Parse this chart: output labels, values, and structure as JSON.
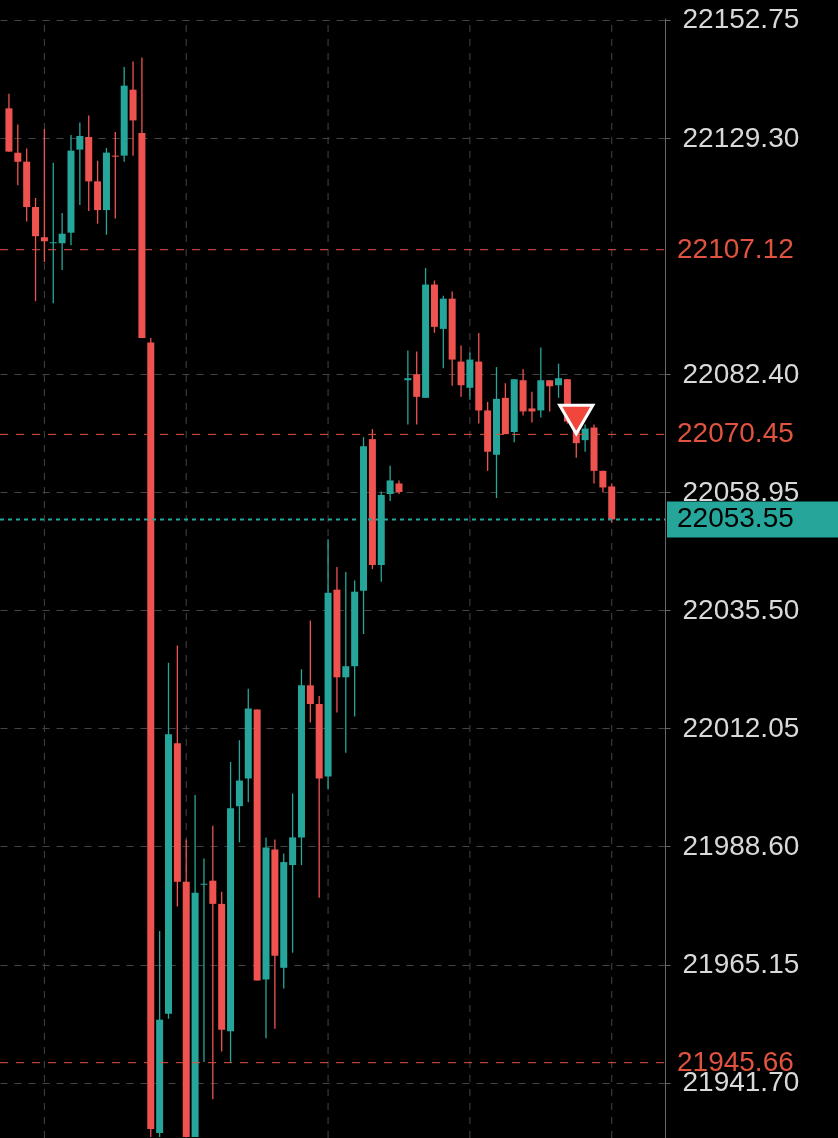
{
  "chart_data": {
    "type": "candlestick",
    "categories": [
      null,
      null,
      null,
      null,
      null,
      null,
      null,
      null,
      null,
      null,
      null,
      null,
      null,
      null,
      null,
      null,
      null,
      null,
      null,
      null,
      null,
      null,
      null,
      null,
      null,
      null,
      null,
      null,
      null,
      null,
      null,
      null,
      null,
      null,
      null,
      null,
      null,
      null,
      null,
      null,
      null,
      null,
      null,
      null,
      null,
      null,
      null,
      null,
      null,
      null,
      null,
      null,
      null,
      null,
      null,
      null,
      null,
      null,
      null,
      null,
      null,
      null,
      null,
      null,
      null,
      null,
      null,
      null,
      null
    ],
    "ohlc": [
      [
        22135.2,
        22138.1,
        22126.6,
        22126.6
      ],
      [
        22126.4,
        22132.0,
        22119.9,
        22124.6
      ],
      [
        22124.6,
        22127.2,
        22112.7,
        22115.6
      ],
      [
        22115.6,
        22117.4,
        22096.9,
        22109.8
      ],
      [
        22109.6,
        22131.1,
        22104.7,
        22108.8
      ],
      [
        22108.4,
        22124.4,
        22096.5,
        22108.6
      ],
      [
        22108.4,
        22114.4,
        22103.1,
        22110.3
      ],
      [
        22110.5,
        22129.9,
        22108.0,
        22126.8
      ],
      [
        22127.0,
        22132.4,
        22116.0,
        22129.7
      ],
      [
        22129.5,
        22133.8,
        22114.8,
        22120.7
      ],
      [
        22120.7,
        22124.8,
        22112.3,
        22115.0
      ],
      [
        22115.0,
        22127.3,
        22110.1,
        22126.4
      ],
      [
        22125.8,
        22130.5,
        22113.3,
        22125.6
      ],
      [
        22125.8,
        22143.4,
        22124.6,
        22139.7
      ],
      [
        22138.9,
        22144.5,
        22125.8,
        22132.8
      ],
      [
        22130.3,
        22145.3,
        22089.6,
        22089.6
      ],
      [
        22088.7,
        22089.6,
        21930.9,
        21932.5
      ],
      [
        21931.7,
        21971.8,
        21930.9,
        21954.2
      ],
      [
        21955.4,
        22025.1,
        21954.4,
        22010.9
      ],
      [
        22009.1,
        22028.5,
        21976.7,
        21981.6
      ],
      [
        21981.6,
        21990.0,
        21930.9,
        21930.9
      ],
      [
        21930.9,
        21998.8,
        21930.9,
        21979.4
      ],
      [
        21981.0,
        21986.2,
        21945.8,
        21981.2
      ],
      [
        21981.8,
        21992.7,
        21938.4,
        21977.2
      ],
      [
        21977.2,
        21979.6,
        21947.9,
        21952.2
      ],
      [
        21951.9,
        22005.4,
        21945.6,
        21996.2
      ],
      [
        21996.6,
        22009.7,
        21989.4,
        22001.7
      ],
      [
        22002.1,
        22019.9,
        21997.4,
        22016.0
      ],
      [
        22015.8,
        22015.8,
        21962.0,
        21962.0
      ],
      [
        21962.2,
        21990.4,
        21950.5,
        21988.4
      ],
      [
        21988.0,
        21990.0,
        21952.4,
        21966.9
      ],
      [
        21964.5,
        21987.2,
        21960.4,
        21985.5
      ],
      [
        21984.9,
        21999.1,
        21967.5,
        21990.4
      ],
      [
        21990.4,
        22023.8,
        21984.9,
        22020.6
      ],
      [
        22020.6,
        22033.5,
        22013.2,
        22016.9
      ],
      [
        22016.9,
        22018.5,
        21978.4,
        22002.1
      ],
      [
        22002.5,
        22049.6,
        21999.9,
        22039.0
      ],
      [
        22039.6,
        22044.1,
        22015.2,
        22022.2
      ],
      [
        22022.2,
        22043.1,
        22007.2,
        22024.4
      ],
      [
        22024.4,
        22041.4,
        22014.4,
        22039.2
      ],
      [
        22039.4,
        22069.9,
        22030.8,
        22068.1
      ],
      [
        22069.5,
        22071.5,
        22043.7,
        22044.5
      ],
      [
        22044.5,
        22059.1,
        22041.2,
        22058.4
      ],
      [
        22058.6,
        22064.2,
        22057.2,
        22061.3
      ],
      [
        22060.7,
        22061.3,
        22058.6,
        22059.0
      ],
      [
        22081.2,
        22087.1,
        22072.4,
        22081.6
      ],
      [
        22082.4,
        22086.9,
        22072.4,
        22077.9
      ],
      [
        22077.7,
        22103.5,
        22077.7,
        22100.2
      ],
      [
        22100.2,
        22101.0,
        22090.6,
        22091.8
      ],
      [
        22091.4,
        22098.0,
        22083.6,
        22097.4
      ],
      [
        22097.4,
        22098.8,
        22080.1,
        22085.3
      ],
      [
        22084.9,
        22088.1,
        22077.9,
        22080.2
      ],
      [
        22079.7,
        22086.7,
        22077.3,
        22085.3
      ],
      [
        22084.9,
        22090.6,
        22072.6,
        22075.2
      ],
      [
        22075.2,
        22076.9,
        22063.2,
        22067.0
      ],
      [
        22066.4,
        22083.8,
        22057.8,
        22077.5
      ],
      [
        22077.7,
        22080.6,
        22070.5,
        22070.5
      ],
      [
        22070.9,
        22081.4,
        22068.9,
        22081.4
      ],
      [
        22081.2,
        22083.4,
        22074.2,
        22075.0
      ],
      [
        22075.6,
        22078.9,
        22072.8,
        22075.0
      ],
      [
        22075.2,
        22087.7,
        22073.8,
        22081.2
      ],
      [
        22081.2,
        22081.2,
        22075.0,
        22080.0
      ],
      [
        22080.2,
        22084.5,
        22077.7,
        22081.6
      ],
      [
        22081.4,
        22081.4,
        22072.6,
        22073.0
      ],
      [
        22071.1,
        22072.0,
        22065.8,
        22068.7
      ],
      [
        22069.3,
        22072.4,
        22067.0,
        22071.6
      ],
      [
        22071.8,
        22072.4,
        22060.7,
        22063.2
      ],
      [
        22063.2,
        22063.2,
        22059.0,
        22059.9
      ],
      [
        22060.1,
        22060.7,
        22052.9,
        22053.55
      ]
    ],
    "series": [
      {
        "type": "scatter",
        "color": "#f0463c",
        "marker": "triangle",
        "values": [
          null,
          null,
          null,
          null,
          null,
          null,
          null,
          null,
          null,
          null,
          null,
          null,
          null,
          null,
          null,
          null,
          null,
          null,
          null,
          null,
          null,
          null,
          null,
          null,
          null,
          null,
          null,
          null,
          null,
          null,
          null,
          null,
          null,
          null,
          null,
          null,
          null,
          null,
          null,
          null,
          null,
          null,
          null,
          null,
          null,
          null,
          null,
          null,
          null,
          null,
          null,
          null,
          null,
          null,
          null,
          null,
          null,
          null,
          null,
          null,
          null,
          null,
          null,
          null,
          22073.4,
          null,
          null,
          null,
          null
        ]
      }
    ],
    "ylim": [
      21930.7,
      22153.14
    ],
    "yticks": [
      22152.75,
      {
        "value": 22129.3,
        "label": "22129.30"
      },
      {
        "value": 22082.4,
        "label": "22082.40"
      },
      22058.95,
      {
        "value": 22035.5,
        "label": "22035.50"
      },
      22012.05,
      {
        "value": 21988.6,
        "label": "21988.60"
      },
      21965.15,
      {
        "value": 21941.7,
        "label": "21941.70"
      }
    ],
    "ref_lines": [
      {
        "axis": "y",
        "value": 22107.12,
        "label": "22107.12",
        "color": "#e0533f",
        "line_style": "dashed"
      },
      {
        "axis": "y",
        "value": 22070.45,
        "label": "22070.45",
        "color": "#e0533f",
        "line_style": "dashed"
      },
      {
        "axis": "y",
        "value": 22053.55,
        "label": "22053.55",
        "color": "#26a69a",
        "line_style": "dotted"
      },
      {
        "axis": "y",
        "value": 21945.66,
        "label": "21945.66",
        "color": "#e0533f",
        "line_style": "dashed"
      }
    ],
    "grid": true,
    "tick_labels": "y"
  }
}
